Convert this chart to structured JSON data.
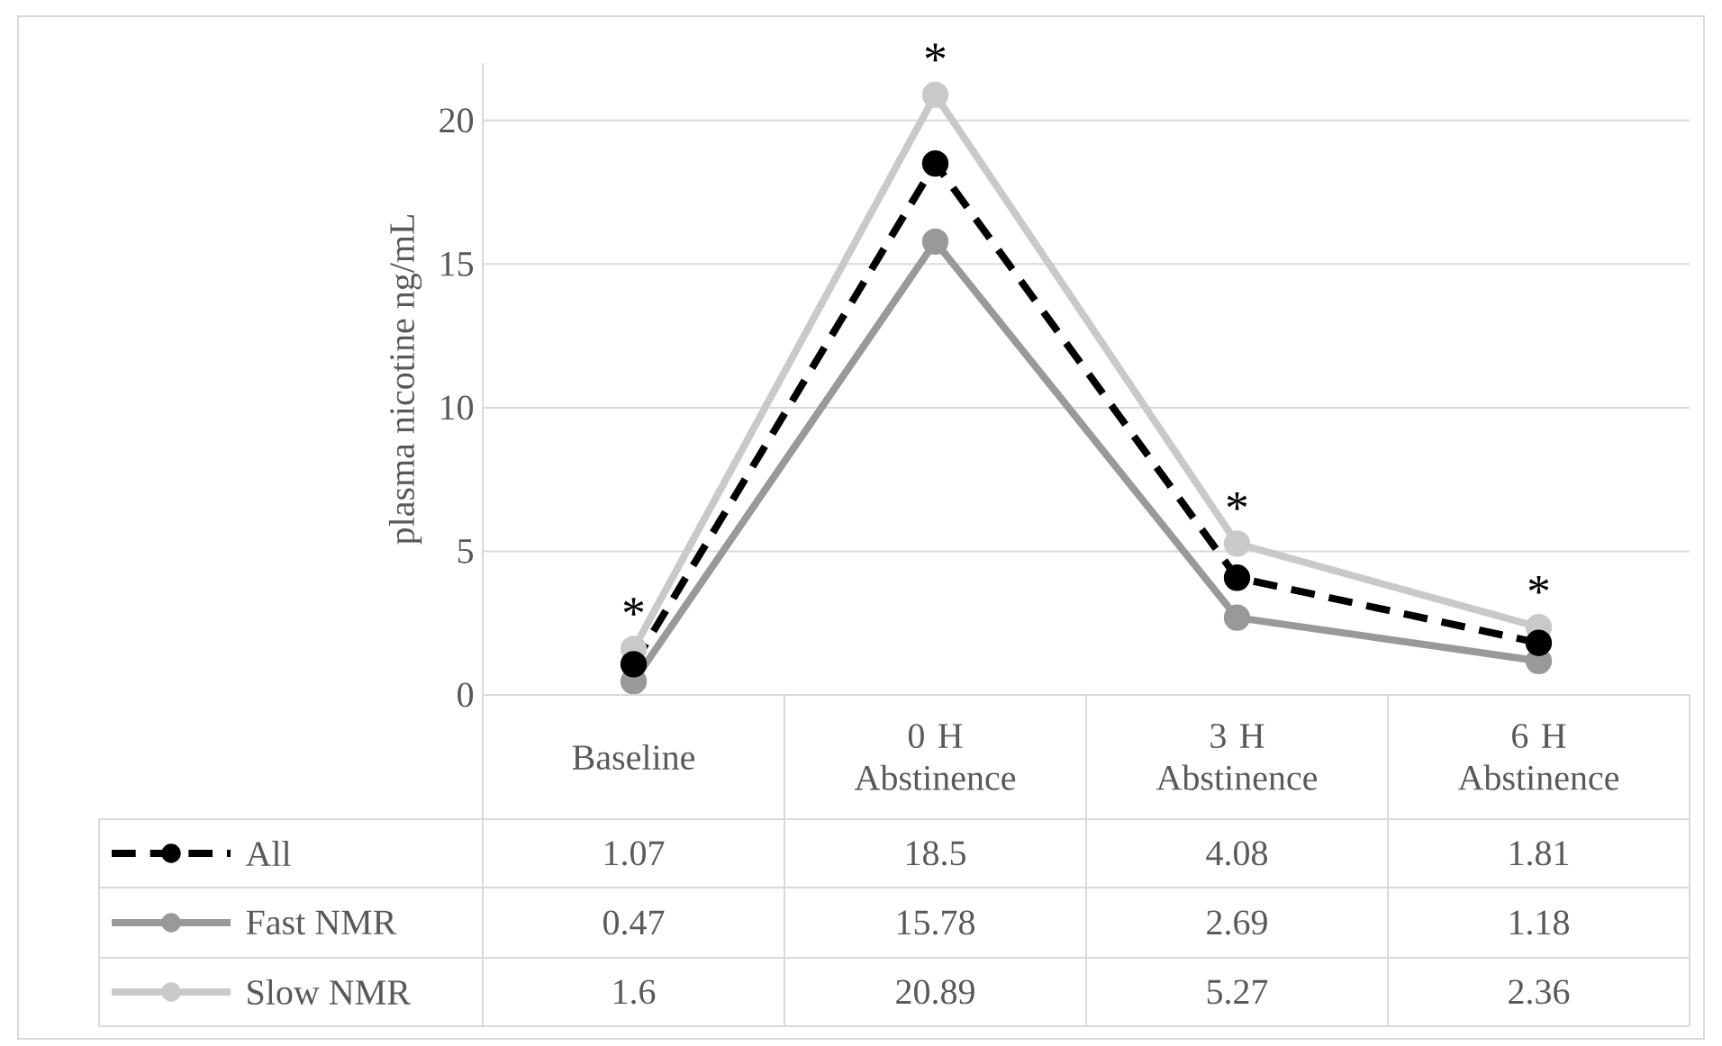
{
  "chart_data": {
    "type": "line",
    "ylabel": "plasma nicotine ng/mL",
    "categories": [
      "Baseline",
      "0 H Abstinence",
      "3 H Abstinence",
      "6 H Abstinence"
    ],
    "series": [
      {
        "name": "All",
        "color": "#000000",
        "line_style": "dashed",
        "values": [
          1.07,
          18.5,
          4.08,
          1.81
        ]
      },
      {
        "name": "Fast NMR",
        "color": "#999999",
        "line_style": "solid",
        "values": [
          0.47,
          15.78,
          2.69,
          1.18
        ]
      },
      {
        "name": "Slow NMR",
        "color": "#c9c9c9",
        "line_style": "solid",
        "values": [
          1.6,
          20.89,
          5.27,
          2.36
        ]
      }
    ],
    "ylim": [
      0,
      22
    ],
    "yticks": [
      0,
      5,
      10,
      15,
      20
    ],
    "grid": "y",
    "marker": "circle",
    "legend": "bottom",
    "data_labels": true,
    "annotations": [
      {
        "text": "*",
        "x": "Baseline",
        "y": 1.6
      },
      {
        "text": "*",
        "x": "0 H Abstinence",
        "y": 20.89
      },
      {
        "text": "*",
        "x": "3 H Abstinence",
        "y": 5.27
      },
      {
        "text": "*",
        "x": "6 H Abstinence",
        "y": 2.36
      }
    ]
  }
}
